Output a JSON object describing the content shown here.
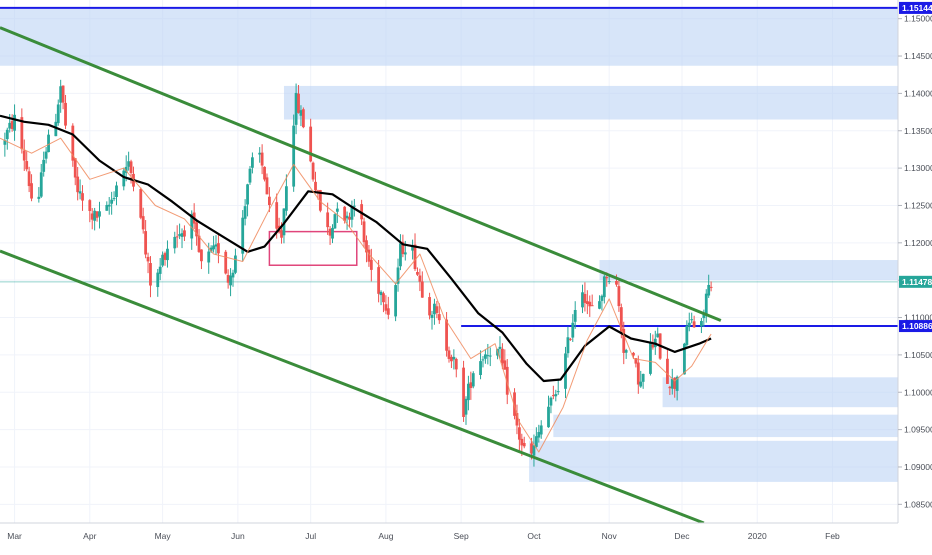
{
  "chart_data": {
    "type": "candlestick",
    "y_axis": {
      "range": [
        1.0825,
        1.1525
      ],
      "ticks": [
        "1.15000",
        "1.14500",
        "1.14000",
        "1.13500",
        "1.13000",
        "1.12500",
        "1.12000",
        "1.11500",
        "1.11000",
        "1.10500",
        "1.10000",
        "1.09500",
        "1.09000",
        "1.08500"
      ],
      "tick_values": [
        1.15,
        1.145,
        1.14,
        1.135,
        1.13,
        1.125,
        1.12,
        1.115,
        1.11,
        1.105,
        1.1,
        1.095,
        1.09,
        1.085
      ],
      "position": "right"
    },
    "x_axis": {
      "range": [
        "2019-02-23",
        "2020-02-28"
      ],
      "ticks": [
        {
          "label": "Mar",
          "date": "2019-03-01"
        },
        {
          "label": "Apr",
          "date": "2019-04-01"
        },
        {
          "label": "May",
          "date": "2019-05-01"
        },
        {
          "label": "Jun",
          "date": "2019-06-01"
        },
        {
          "label": "Jul",
          "date": "2019-07-01"
        },
        {
          "label": "Aug",
          "date": "2019-08-01"
        },
        {
          "label": "Sep",
          "date": "2019-09-01"
        },
        {
          "label": "Oct",
          "date": "2019-10-01"
        },
        {
          "label": "Nov",
          "date": "2019-11-01"
        },
        {
          "label": "Dec",
          "date": "2019-12-01"
        },
        {
          "label": "2020",
          "date": "2020-01-01"
        },
        {
          "label": "Feb",
          "date": "2020-02-01"
        }
      ]
    },
    "price_badges": [
      {
        "label": "1.15144",
        "value": 1.15144,
        "color": "#1a1ae6"
      },
      {
        "label": "1.11478",
        "value": 1.11478,
        "color": "#26a69a"
      },
      {
        "label": "1.10886",
        "value": 1.10886,
        "color": "#1a1ae6"
      }
    ],
    "horizontal_lines": [
      {
        "value": 1.15144,
        "from": "2019-02-23",
        "color": "#1a1ae6"
      },
      {
        "value": 1.10886,
        "from": "2019-09-01",
        "color": "#1a1ae6"
      }
    ],
    "last_price_line": {
      "value": 1.11478,
      "color": "#26a69a"
    },
    "trend_lines": [
      {
        "from": {
          "date": "2019-02-23",
          "value": 1.1488
        },
        "to": {
          "date": "2019-12-17",
          "value": 1.1096
        },
        "color": "#3a8c3a"
      },
      {
        "from": {
          "date": "2019-02-23",
          "value": 1.1189
        },
        "to": {
          "date": "2019-12-10",
          "value": 1.0825
        },
        "color": "#3a8c3a"
      }
    ],
    "zones": [
      {
        "from": "2019-02-23",
        "to": "2020-02-28",
        "top": 1.1513,
        "bottom": 1.1437
      },
      {
        "from": "2019-06-20",
        "to": "2020-02-28",
        "top": 1.141,
        "bottom": 1.1365
      },
      {
        "from": "2019-10-28",
        "to": "2020-02-28",
        "top": 1.1177,
        "bottom": 1.115
      },
      {
        "from": "2019-11-23",
        "to": "2020-02-28",
        "top": 1.102,
        "bottom": 1.098
      },
      {
        "from": "2019-10-09",
        "to": "2020-02-28",
        "top": 1.097,
        "bottom": 1.094
      },
      {
        "from": "2019-09-29",
        "to": "2020-02-28",
        "top": 1.0935,
        "bottom": 1.088
      }
    ],
    "rectangles": [
      {
        "from": "2019-06-14",
        "to": "2019-07-20",
        "top": 1.1215,
        "bottom": 1.117,
        "color": "#e0457b"
      }
    ],
    "moving_averages": [
      {
        "color": "#000000",
        "points": [
          [
            "2019-02-23",
            1.137
          ],
          [
            "2019-03-05",
            1.1362
          ],
          [
            "2019-03-15",
            1.1358
          ],
          [
            "2019-03-25",
            1.1345
          ],
          [
            "2019-04-05",
            1.131
          ],
          [
            "2019-04-15",
            1.1288
          ],
          [
            "2019-04-25",
            1.1278
          ],
          [
            "2019-05-05",
            1.1255
          ],
          [
            "2019-05-15",
            1.123
          ],
          [
            "2019-05-25",
            1.121
          ],
          [
            "2019-06-05",
            1.1188
          ],
          [
            "2019-06-12",
            1.1195
          ],
          [
            "2019-06-20",
            1.1226
          ],
          [
            "2019-06-30",
            1.1269
          ],
          [
            "2019-07-10",
            1.1265
          ],
          [
            "2019-07-18",
            1.1248
          ],
          [
            "2019-07-28",
            1.1228
          ],
          [
            "2019-08-08",
            1.1198
          ],
          [
            "2019-08-18",
            1.1192
          ],
          [
            "2019-08-28",
            1.1152
          ],
          [
            "2019-09-08",
            1.1106
          ],
          [
            "2019-09-18",
            1.108
          ],
          [
            "2019-09-28",
            1.1038
          ],
          [
            "2019-10-05",
            1.1015
          ],
          [
            "2019-10-12",
            1.1017
          ],
          [
            "2019-10-22",
            1.1062
          ],
          [
            "2019-11-01",
            1.1088
          ],
          [
            "2019-11-10",
            1.1072
          ],
          [
            "2019-11-20",
            1.1065
          ],
          [
            "2019-11-28",
            1.1054
          ],
          [
            "2019-12-08",
            1.1065
          ],
          [
            "2019-12-13",
            1.1072
          ]
        ]
      },
      {
        "color": "#f08a5d",
        "points": [
          [
            "2019-02-23",
            1.134
          ],
          [
            "2019-03-08",
            1.132
          ],
          [
            "2019-03-20",
            1.134
          ],
          [
            "2019-04-01",
            1.1285
          ],
          [
            "2019-04-15",
            1.13
          ],
          [
            "2019-04-28",
            1.125
          ],
          [
            "2019-05-10",
            1.1232
          ],
          [
            "2019-05-22",
            1.1185
          ],
          [
            "2019-06-03",
            1.1175
          ],
          [
            "2019-06-14",
            1.1245
          ],
          [
            "2019-06-24",
            1.1305
          ],
          [
            "2019-07-05",
            1.1255
          ],
          [
            "2019-07-15",
            1.123
          ],
          [
            "2019-07-25",
            1.1185
          ],
          [
            "2019-08-05",
            1.1145
          ],
          [
            "2019-08-15",
            1.1185
          ],
          [
            "2019-08-25",
            1.11
          ],
          [
            "2019-09-05",
            1.1045
          ],
          [
            "2019-09-15",
            1.1065
          ],
          [
            "2019-09-25",
            1.096
          ],
          [
            "2019-10-03",
            1.092
          ],
          [
            "2019-10-13",
            1.098
          ],
          [
            "2019-10-23",
            1.107
          ],
          [
            "2019-11-01",
            1.1125
          ],
          [
            "2019-11-11",
            1.1045
          ],
          [
            "2019-11-20",
            1.104
          ],
          [
            "2019-11-28",
            1.1015
          ],
          [
            "2019-12-05",
            1.1035
          ],
          [
            "2019-12-13",
            1.1078
          ]
        ]
      }
    ],
    "series": [
      {
        "name": "",
        "points": [
          [
            "2019-02-23",
            1.133
          ],
          [
            "2019-03-01",
            1.1365
          ],
          [
            "2019-03-06",
            1.13
          ],
          [
            "2019-03-10",
            1.122
          ],
          [
            "2019-03-13",
            1.132
          ],
          [
            "2019-03-17",
            1.135
          ],
          [
            "2019-03-20",
            1.141
          ],
          [
            "2019-03-23",
            1.133
          ],
          [
            "2019-03-27",
            1.127
          ],
          [
            "2019-03-31",
            1.124
          ],
          [
            "2019-04-03",
            1.1235
          ],
          [
            "2019-04-07",
            1.1235
          ],
          [
            "2019-04-10",
            1.1258
          ],
          [
            "2019-04-14",
            1.1298
          ],
          [
            "2019-04-17",
            1.1302
          ],
          [
            "2019-04-21",
            1.127
          ],
          [
            "2019-04-24",
            1.1185
          ],
          [
            "2019-04-27",
            1.113
          ],
          [
            "2019-05-01",
            1.118
          ],
          [
            "2019-05-05",
            1.121
          ],
          [
            "2019-05-09",
            1.1215
          ],
          [
            "2019-05-13",
            1.123
          ],
          [
            "2019-05-17",
            1.117
          ],
          [
            "2019-05-21",
            1.1185
          ],
          [
            "2019-05-25",
            1.1195
          ],
          [
            "2019-05-28",
            1.115
          ],
          [
            "2019-06-01",
            1.119
          ],
          [
            "2019-06-05",
            1.128
          ],
          [
            "2019-06-09",
            1.133
          ],
          [
            "2019-06-12",
            1.129
          ],
          [
            "2019-06-15",
            1.1215
          ],
          [
            "2019-06-19",
            1.121
          ],
          [
            "2019-06-22",
            1.132
          ],
          [
            "2019-06-25",
            1.139
          ],
          [
            "2019-06-28",
            1.136
          ],
          [
            "2019-07-02",
            1.129
          ],
          [
            "2019-07-06",
            1.123
          ],
          [
            "2019-07-09",
            1.121
          ],
          [
            "2019-07-12",
            1.1255
          ],
          [
            "2019-07-16",
            1.123
          ],
          [
            "2019-07-20",
            1.127
          ],
          [
            "2019-07-23",
            1.12
          ],
          [
            "2019-07-27",
            1.115
          ],
          [
            "2019-07-31",
            1.113
          ],
          [
            "2019-08-03",
            1.11
          ],
          [
            "2019-08-07",
            1.119
          ],
          [
            "2019-08-11",
            1.1205
          ],
          [
            "2019-08-14",
            1.116
          ],
          [
            "2019-08-18",
            1.1115
          ],
          [
            "2019-08-21",
            1.111
          ],
          [
            "2019-08-25",
            1.107
          ],
          [
            "2019-08-29",
            1.104
          ],
          [
            "2019-09-02",
            1.0975
          ],
          [
            "2019-09-06",
            1.103
          ],
          [
            "2019-09-10",
            1.105
          ],
          [
            "2019-09-14",
            1.106
          ],
          [
            "2019-09-17",
            1.105
          ],
          [
            "2019-09-21",
            1.099
          ],
          [
            "2019-09-25",
            1.094
          ],
          [
            "2019-09-29",
            1.0905
          ],
          [
            "2019-10-02",
            1.0935
          ],
          [
            "2019-10-06",
            1.0975
          ],
          [
            "2019-10-09",
            1.099
          ],
          [
            "2019-10-13",
            1.103
          ],
          [
            "2019-10-16",
            1.108
          ],
          [
            "2019-10-20",
            1.115
          ],
          [
            "2019-10-24",
            1.111
          ],
          [
            "2019-10-27",
            1.111
          ],
          [
            "2019-10-31",
            1.116
          ],
          [
            "2019-11-04",
            1.114
          ],
          [
            "2019-11-07",
            1.106
          ],
          [
            "2019-11-11",
            1.104
          ],
          [
            "2019-11-14",
            1.101
          ],
          [
            "2019-11-18",
            1.106
          ],
          [
            "2019-11-21",
            1.107
          ],
          [
            "2019-11-24",
            1.102
          ],
          [
            "2019-11-28",
            1.101
          ],
          [
            "2019-12-02",
            1.107
          ],
          [
            "2019-12-05",
            1.11
          ],
          [
            "2019-12-08",
            1.1065
          ],
          [
            "2019-12-11",
            1.113
          ],
          [
            "2019-12-13",
            1.115
          ]
        ]
      }
    ]
  }
}
